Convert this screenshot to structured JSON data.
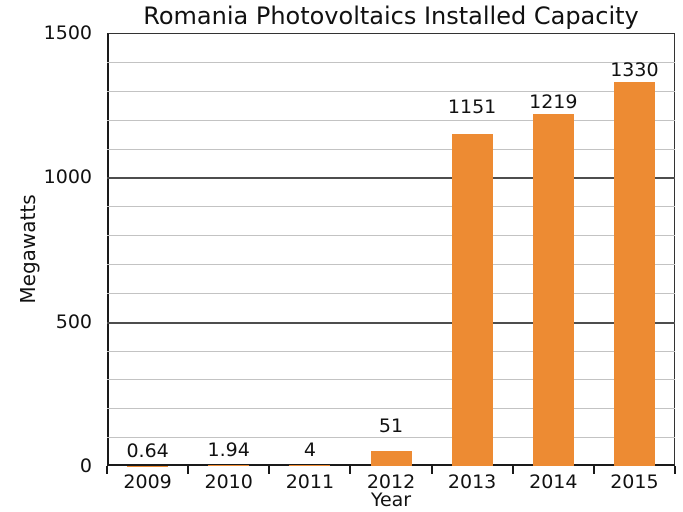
{
  "title": "Romania Photovoltaics Installed Capacity",
  "chart_data": {
    "type": "bar",
    "title": "Romania Photovoltaics Installed Capacity",
    "xlabel": "Year",
    "ylabel": "Megawatts",
    "categories": [
      "2009",
      "2010",
      "2011",
      "2012",
      "2013",
      "2014",
      "2015"
    ],
    "values": [
      0.64,
      1.94,
      4,
      51,
      1151,
      1219,
      1330
    ],
    "value_labels": [
      "0.64",
      "1.94",
      "4",
      "51",
      "1151",
      "1219",
      "1330"
    ],
    "ylim": [
      0,
      1500
    ],
    "ytick_values": [
      0,
      500,
      1000,
      1500
    ],
    "ytick_labels": [
      "0",
      "500",
      "1000",
      "1500"
    ],
    "minor_grid_step": 100,
    "major_grid_step": 500,
    "grid": "horizontal-only",
    "legend": "none",
    "colors": {
      "bar": "#ED8B33",
      "minor_grid": "#c3c3c3",
      "major_grid": "#4d4d4d",
      "spine": "#1a1a1a",
      "text": "#111111",
      "background": "#ffffff"
    }
  }
}
